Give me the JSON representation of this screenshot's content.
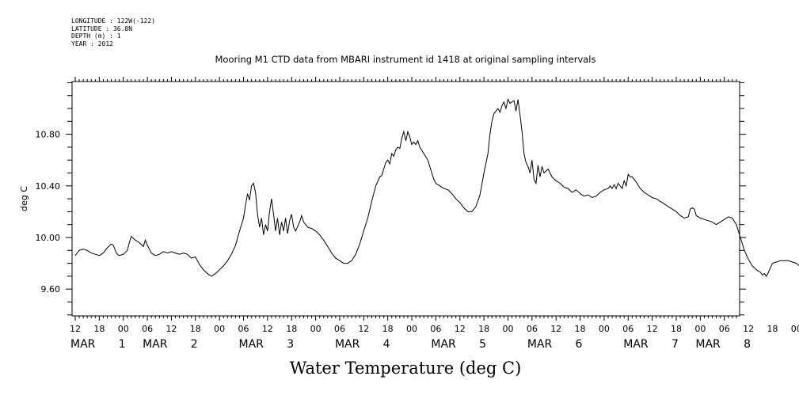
{
  "meta_lines": [
    "LONGITUDE : 122W(-122)",
    "LATITUDE : 36.8N",
    "DEPTH (m) : 1",
    "YEAR : 2012"
  ],
  "chart_data": {
    "type": "line",
    "title": "Mooring M1 CTD data from MBARI instrument id 1418 at original sampling intervals",
    "xlabel": "Water Temperature (deg C)",
    "ylabel": "deg C",
    "x_unit": "hours since 2012-03-01 00:00",
    "xlim": [
      -12,
      171
    ],
    "ylim": [
      9.39,
      11.2
    ],
    "yticks": [
      9.6,
      10.0,
      10.4,
      10.8
    ],
    "ytick_labels": [
      "9.60",
      "10.00",
      "10.40",
      "10.80"
    ],
    "xtick_hours": [
      -12,
      -6,
      0,
      6,
      12,
      18,
      24,
      30,
      36,
      42,
      48,
      54,
      60,
      66,
      72,
      78,
      84,
      90,
      96,
      102,
      108,
      114,
      120,
      126,
      132,
      138,
      144,
      150,
      156,
      162,
      168
    ],
    "xtick_labels": [
      "12",
      "18",
      "00",
      "06",
      "12",
      "18",
      "00",
      "06",
      "12",
      "18",
      "00",
      "06",
      "12",
      "18",
      "00",
      "06",
      "12",
      "18",
      "00",
      "06",
      "12",
      "18",
      "00",
      "06",
      "12",
      "18",
      "00",
      "06",
      "12",
      "18",
      "00"
    ],
    "date_labels": [
      {
        "hours": -12,
        "text": "MAR"
      },
      {
        "hours": 0,
        "text": "1"
      },
      {
        "hours": 6,
        "text": "MAR"
      },
      {
        "hours": 18,
        "text": "2"
      },
      {
        "hours": 30,
        "text": "MAR"
      },
      {
        "hours": 42,
        "text": "3"
      },
      {
        "hours": 54,
        "text": "MAR"
      },
      {
        "hours": 66,
        "text": "4"
      },
      {
        "hours": 78,
        "text": "MAR"
      },
      {
        "hours": 90,
        "text": "5"
      },
      {
        "hours": 102,
        "text": "MAR"
      },
      {
        "hours": 114,
        "text": "6"
      },
      {
        "hours": 126,
        "text": "MAR"
      },
      {
        "hours": 138,
        "text": "7"
      },
      {
        "hours": 144,
        "text": "MAR"
      },
      {
        "hours": 156,
        "text": "8"
      }
    ],
    "grid": false,
    "series": [
      {
        "color": "#000000",
        "points": [
          [
            -12,
            9.86
          ],
          [
            -11,
            9.9
          ],
          [
            -10,
            9.91
          ],
          [
            -9,
            9.9
          ],
          [
            -8,
            9.88
          ],
          [
            -7,
            9.87
          ],
          [
            -6,
            9.86
          ],
          [
            -5,
            9.88
          ],
          [
            -4,
            9.92
          ],
          [
            -3,
            9.95
          ],
          [
            -2.5,
            9.94
          ],
          [
            -2,
            9.9
          ],
          [
            -1.5,
            9.87
          ],
          [
            -1,
            9.86
          ],
          [
            0,
            9.87
          ],
          [
            1,
            9.9
          ],
          [
            1.5,
            9.96
          ],
          [
            2,
            10.01
          ],
          [
            3,
            9.98
          ],
          [
            4,
            9.96
          ],
          [
            5,
            9.93
          ],
          [
            5.5,
            9.98
          ],
          [
            6,
            9.94
          ],
          [
            7,
            9.88
          ],
          [
            8,
            9.86
          ],
          [
            9,
            9.87
          ],
          [
            10,
            9.89
          ],
          [
            11,
            9.88
          ],
          [
            12,
            9.89
          ],
          [
            13,
            9.88
          ],
          [
            14,
            9.87
          ],
          [
            15,
            9.88
          ],
          [
            16,
            9.87
          ],
          [
            17,
            9.84
          ],
          [
            18,
            9.85
          ],
          [
            19,
            9.79
          ],
          [
            20,
            9.75
          ],
          [
            21,
            9.72
          ],
          [
            22,
            9.7
          ],
          [
            23,
            9.72
          ],
          [
            24,
            9.75
          ],
          [
            25,
            9.78
          ],
          [
            26,
            9.82
          ],
          [
            27,
            9.87
          ],
          [
            28,
            9.94
          ],
          [
            29,
            10.05
          ],
          [
            30,
            10.15
          ],
          [
            30.5,
            10.25
          ],
          [
            31,
            10.34
          ],
          [
            31.5,
            10.29
          ],
          [
            32,
            10.4
          ],
          [
            32.5,
            10.42
          ],
          [
            33,
            10.35
          ],
          [
            33.5,
            10.18
          ],
          [
            34,
            10.08
          ],
          [
            34.5,
            10.15
          ],
          [
            35,
            10.02
          ],
          [
            35.5,
            10.1
          ],
          [
            36,
            10.05
          ],
          [
            36.5,
            10.2
          ],
          [
            37,
            10.3
          ],
          [
            37.5,
            10.18
          ],
          [
            38,
            10.05
          ],
          [
            38.5,
            10.15
          ],
          [
            39,
            10.02
          ],
          [
            39.5,
            10.12
          ],
          [
            40,
            10.05
          ],
          [
            40.5,
            10.15
          ],
          [
            41,
            10.03
          ],
          [
            41.5,
            10.13
          ],
          [
            42,
            10.18
          ],
          [
            42.5,
            10.08
          ],
          [
            43,
            10.05
          ],
          [
            44,
            10.12
          ],
          [
            44.5,
            10.17
          ],
          [
            45,
            10.12
          ],
          [
            46,
            10.08
          ],
          [
            47,
            10.07
          ],
          [
            48,
            10.05
          ],
          [
            49,
            10.02
          ],
          [
            50,
            9.98
          ],
          [
            51,
            9.93
          ],
          [
            52,
            9.88
          ],
          [
            53,
            9.84
          ],
          [
            54,
            9.82
          ],
          [
            55,
            9.8
          ],
          [
            56,
            9.8
          ],
          [
            57,
            9.82
          ],
          [
            58,
            9.87
          ],
          [
            59,
            9.95
          ],
          [
            60,
            10.05
          ],
          [
            61,
            10.15
          ],
          [
            62,
            10.28
          ],
          [
            63,
            10.4
          ],
          [
            64,
            10.47
          ],
          [
            64.5,
            10.48
          ],
          [
            65,
            10.53
          ],
          [
            65.5,
            10.58
          ],
          [
            66,
            10.6
          ],
          [
            66.5,
            10.57
          ],
          [
            67,
            10.65
          ],
          [
            67.5,
            10.63
          ],
          [
            68,
            10.68
          ],
          [
            68.5,
            10.7
          ],
          [
            69,
            10.69
          ],
          [
            69.5,
            10.77
          ],
          [
            70,
            10.82
          ],
          [
            70.5,
            10.75
          ],
          [
            71,
            10.82
          ],
          [
            71.5,
            10.78
          ],
          [
            72,
            10.72
          ],
          [
            72.5,
            10.74
          ],
          [
            73,
            10.72
          ],
          [
            73.5,
            10.75
          ],
          [
            74,
            10.7
          ],
          [
            75,
            10.65
          ],
          [
            76,
            10.6
          ],
          [
            77,
            10.5
          ],
          [
            77.5,
            10.45
          ],
          [
            78,
            10.42
          ],
          [
            79,
            10.4
          ],
          [
            80,
            10.38
          ],
          [
            81,
            10.37
          ],
          [
            82,
            10.34
          ],
          [
            83,
            10.3
          ],
          [
            84,
            10.27
          ],
          [
            85,
            10.23
          ],
          [
            86,
            10.2
          ],
          [
            87,
            10.2
          ],
          [
            88,
            10.24
          ],
          [
            89,
            10.33
          ],
          [
            90,
            10.5
          ],
          [
            91,
            10.65
          ],
          [
            91.5,
            10.8
          ],
          [
            92,
            10.9
          ],
          [
            92.5,
            10.96
          ],
          [
            93,
            10.98
          ],
          [
            93.5,
            11.0
          ],
          [
            94,
            10.97
          ],
          [
            94.5,
            11.02
          ],
          [
            95,
            11.05
          ],
          [
            95.5,
            11.0
          ],
          [
            96,
            11.07
          ],
          [
            96.5,
            11.04
          ],
          [
            97,
            11.05
          ],
          [
            97.5,
            11.06
          ],
          [
            98,
            10.98
          ],
          [
            98.5,
            11.07
          ],
          [
            99,
            10.95
          ],
          [
            99.5,
            10.82
          ],
          [
            100,
            10.65
          ],
          [
            100.5,
            10.58
          ],
          [
            101,
            10.55
          ],
          [
            101.5,
            10.5
          ],
          [
            102,
            10.6
          ],
          [
            102.5,
            10.45
          ],
          [
            103,
            10.42
          ],
          [
            103.5,
            10.56
          ],
          [
            104,
            10.47
          ],
          [
            104.5,
            10.55
          ],
          [
            105,
            10.5
          ],
          [
            106,
            10.53
          ],
          [
            107,
            10.47
          ],
          [
            108,
            10.44
          ],
          [
            109,
            10.42
          ],
          [
            110,
            10.39
          ],
          [
            111,
            10.38
          ],
          [
            112,
            10.35
          ],
          [
            113,
            10.37
          ],
          [
            114,
            10.34
          ],
          [
            115,
            10.32
          ],
          [
            116,
            10.33
          ],
          [
            117,
            10.31
          ],
          [
            118,
            10.32
          ],
          [
            119,
            10.35
          ],
          [
            120,
            10.37
          ],
          [
            121,
            10.38
          ],
          [
            121.5,
            10.4
          ],
          [
            122,
            10.38
          ],
          [
            122.5,
            10.41
          ],
          [
            123,
            10.38
          ],
          [
            123.5,
            10.42
          ],
          [
            124,
            10.4
          ],
          [
            124.5,
            10.38
          ],
          [
            125,
            10.44
          ],
          [
            125.5,
            10.4
          ],
          [
            126,
            10.49
          ],
          [
            126.5,
            10.47
          ],
          [
            127,
            10.47
          ],
          [
            128,
            10.43
          ],
          [
            129,
            10.38
          ],
          [
            130,
            10.35
          ],
          [
            131,
            10.33
          ],
          [
            132,
            10.31
          ],
          [
            133,
            10.3
          ],
          [
            134,
            10.28
          ],
          [
            135,
            10.26
          ],
          [
            136,
            10.24
          ],
          [
            137,
            10.22
          ],
          [
            138,
            10.2
          ],
          [
            139,
            10.17
          ],
          [
            140,
            10.15
          ],
          [
            141,
            10.16
          ],
          [
            141.5,
            10.22
          ],
          [
            142,
            10.23
          ],
          [
            142.5,
            10.22
          ],
          [
            143,
            10.17
          ],
          [
            144,
            10.15
          ],
          [
            145,
            10.14
          ],
          [
            146,
            10.13
          ],
          [
            147,
            10.12
          ],
          [
            148,
            10.1
          ],
          [
            149,
            10.12
          ],
          [
            150,
            10.14
          ],
          [
            151,
            10.16
          ],
          [
            152,
            10.15
          ],
          [
            153,
            10.1
          ],
          [
            154,
            10.0
          ],
          [
            155,
            9.9
          ],
          [
            156,
            9.83
          ],
          [
            157,
            9.78
          ],
          [
            158,
            9.75
          ],
          [
            159,
            9.73
          ],
          [
            159.5,
            9.71
          ],
          [
            160,
            9.72
          ],
          [
            160.5,
            9.7
          ],
          [
            161,
            9.73
          ],
          [
            162,
            9.8
          ],
          [
            163,
            9.81
          ],
          [
            164,
            9.82
          ],
          [
            165,
            9.82
          ],
          [
            166,
            9.82
          ],
          [
            167,
            9.81
          ],
          [
            168,
            9.8
          ],
          [
            169,
            9.77
          ],
          [
            170,
            9.73
          ],
          [
            170.5,
            9.7
          ]
        ]
      }
    ]
  }
}
